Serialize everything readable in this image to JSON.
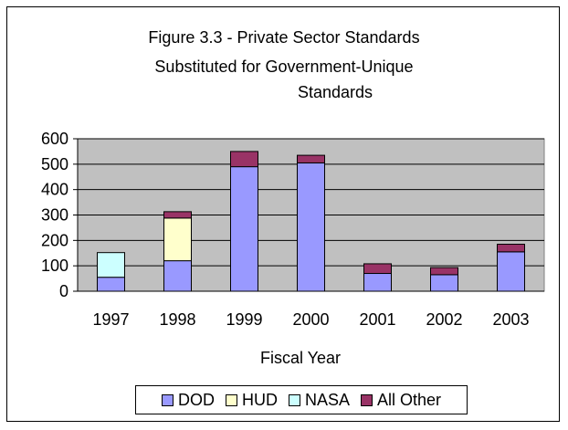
{
  "colors": {
    "DOD": "#9999ff",
    "HUD": "#ffffcc",
    "NASA": "#ccffff",
    "All Other": "#993366",
    "plot_area": "#c0c0c0"
  },
  "chart_data": {
    "type": "bar",
    "stacked": true,
    "title_lines": [
      "Figure 3.3 - Private Sector Standards",
      "Substituted for Government-Unique",
      "Standards"
    ],
    "xlabel": "Fiscal Year",
    "ylabel": "",
    "categories": [
      "1997",
      "1998",
      "1999",
      "2000",
      "2001",
      "2002",
      "2003"
    ],
    "ylim": [
      0,
      600
    ],
    "yticks": [
      "0",
      "100",
      "200",
      "300",
      "400",
      "500",
      "600"
    ],
    "grid": true,
    "legend_position": "bottom",
    "series": [
      {
        "name": "DOD",
        "values": [
          55,
          120,
          490,
          505,
          70,
          65,
          155
        ]
      },
      {
        "name": "HUD",
        "values": [
          0,
          168,
          0,
          0,
          0,
          0,
          0
        ]
      },
      {
        "name": "NASA",
        "values": [
          97,
          0,
          0,
          0,
          0,
          0,
          0
        ]
      },
      {
        "name": "All Other",
        "values": [
          0,
          25,
          60,
          30,
          38,
          28,
          30
        ]
      }
    ]
  }
}
